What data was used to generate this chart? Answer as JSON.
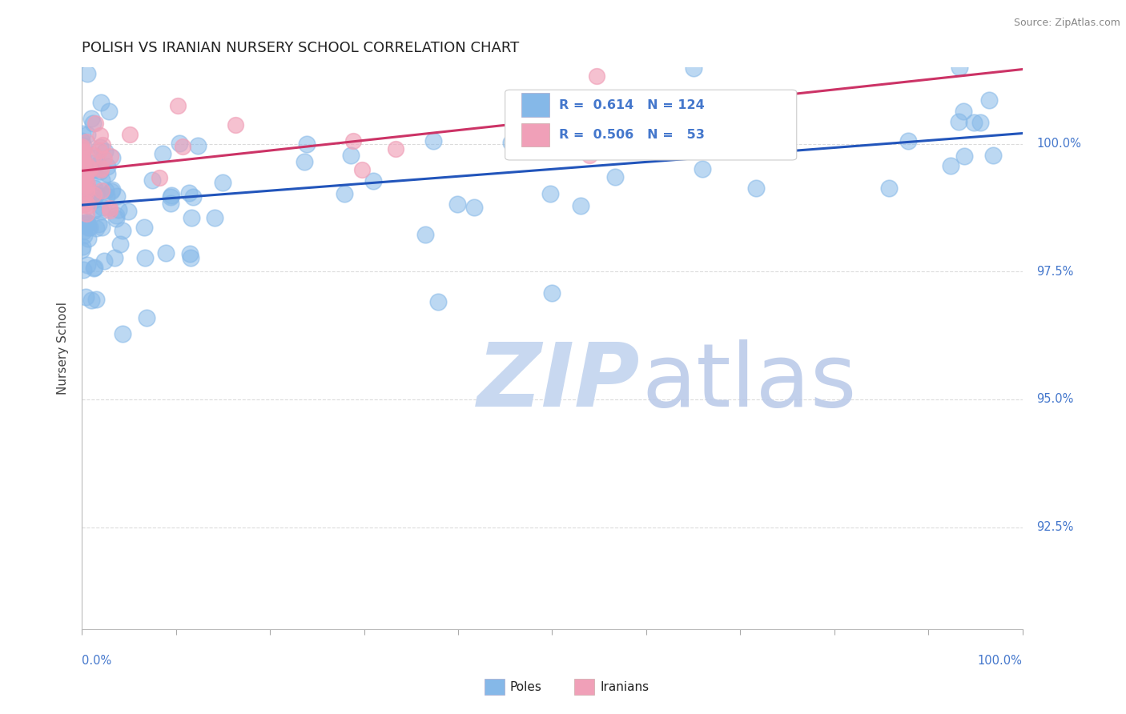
{
  "title": "POLISH VS IRANIAN NURSERY SCHOOL CORRELATION CHART",
  "source_text": "Source: ZipAtlas.com",
  "ylabel": "Nursery School",
  "legend_blue_label": "Poles",
  "legend_pink_label": "Iranians",
  "R_blue": 0.614,
  "N_blue": 124,
  "R_pink": 0.506,
  "N_pink": 53,
  "blue_color": "#85b8e8",
  "pink_color": "#f0a0b8",
  "blue_line_color": "#2255bb",
  "pink_line_color": "#cc3366",
  "watermark_zip_color": "#c8d8f0",
  "watermark_atlas_color": "#b8c8e8",
  "background_color": "#ffffff",
  "grid_color": "#cccccc",
  "title_color": "#222222",
  "axis_label_color": "#4477cc",
  "tick_label_color": "#4477cc",
  "legend_text_color": "#4477cc",
  "ylabel_color": "#444444",
  "source_color": "#888888",
  "ylim_min": 90.5,
  "ylim_max": 101.5,
  "xlim_min": 0,
  "xlim_max": 100,
  "ytick_values": [
    92.5,
    95.0,
    97.5,
    100.0
  ]
}
